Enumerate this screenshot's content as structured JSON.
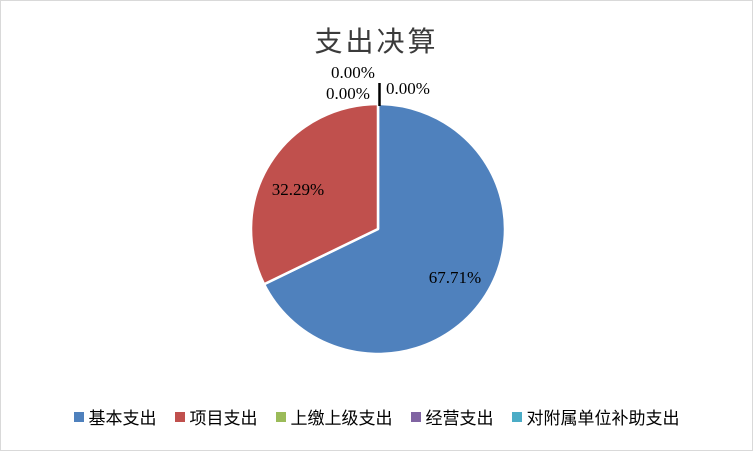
{
  "chart_data": {
    "type": "pie",
    "title": "支出决算",
    "series": [
      {
        "name": "基本支出",
        "value": 67.71,
        "label": "67.71%",
        "color": "#4F81BD"
      },
      {
        "name": "项目支出",
        "value": 32.29,
        "label": "32.29%",
        "color": "#C0504D"
      },
      {
        "name": "上缴上级支出",
        "value": 0,
        "label": "0.00%",
        "color": "#9BBB59"
      },
      {
        "name": "经营支出",
        "value": 0,
        "label": "0.00%",
        "color": "#8064A2"
      },
      {
        "name": "对附属单位补助支出",
        "value": 0,
        "label": "0.00%",
        "color": "#4BACC6"
      }
    ],
    "start_angle_deg": 0,
    "direction": "clockwise",
    "legend_position": "bottom",
    "slice_border_color": "#FFFFFF",
    "leader_line_color": "#000000",
    "text_color": "#000000",
    "background": "#FFFFFF"
  }
}
